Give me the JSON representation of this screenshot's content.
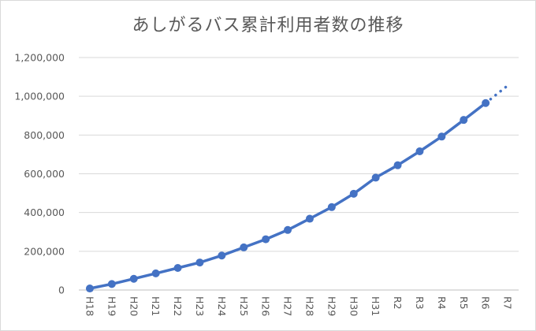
{
  "chart_data": {
    "type": "line",
    "title": "あしがるバス累計利用者数の推移",
    "xlabel": "",
    "ylabel": "",
    "categories": [
      "H18",
      "H19",
      "H20",
      "H21",
      "H22",
      "H23",
      "H24",
      "H25",
      "H26",
      "H27",
      "H28",
      "H29",
      "H30",
      "H31",
      "R2",
      "R3",
      "R4",
      "R5",
      "R6",
      "R7"
    ],
    "series": [
      {
        "values": [
          8000,
          31000,
          58000,
          86000,
          114000,
          142000,
          178000,
          220000,
          262000,
          310000,
          368000,
          428000,
          497000,
          580000,
          644000,
          716000,
          792000,
          878000,
          965000,
          null
        ],
        "color": "#4472c4"
      },
      {
        "style": "dotted-projection",
        "values": [
          null,
          null,
          null,
          null,
          null,
          null,
          null,
          null,
          null,
          null,
          null,
          null,
          null,
          null,
          null,
          null,
          null,
          null,
          965000,
          1055000
        ],
        "color": "#4472c4"
      }
    ],
    "ylim": [
      0,
      1200000
    ],
    "yticks": [
      "0",
      "200,000",
      "400,000",
      "600,000",
      "800,000",
      "1,000,000",
      "1,200,000"
    ],
    "grid": true,
    "legend": "none"
  }
}
